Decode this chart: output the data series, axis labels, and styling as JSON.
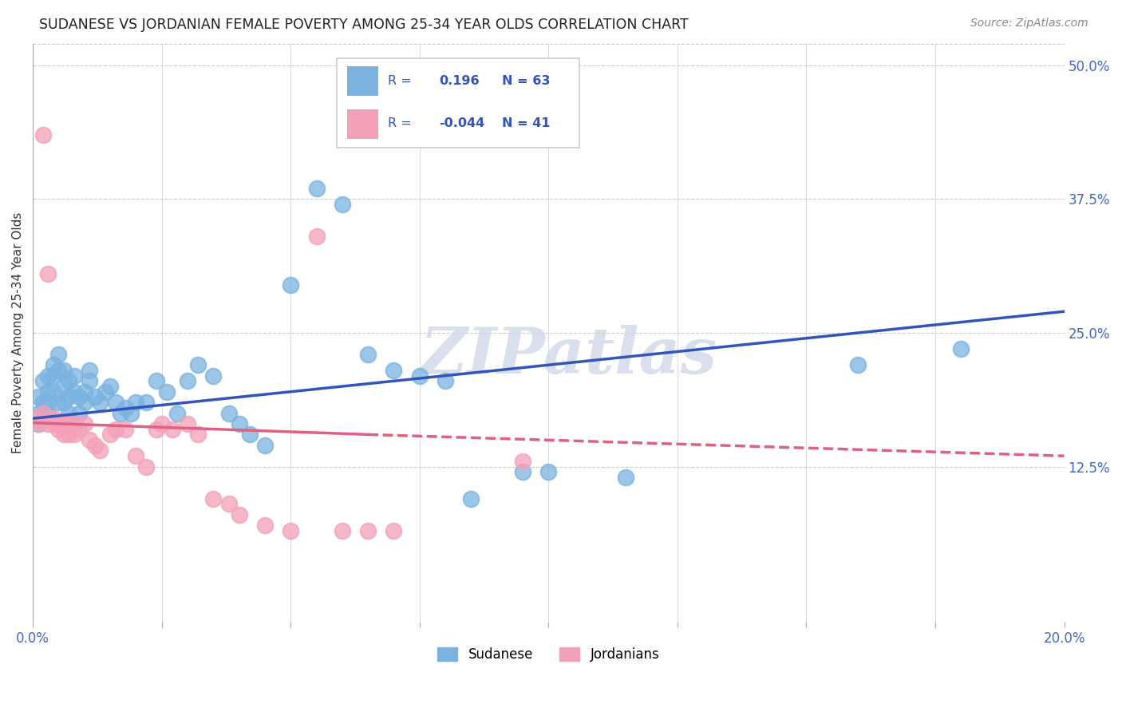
{
  "title": "SUDANESE VS JORDANIAN FEMALE POVERTY AMONG 25-34 YEAR OLDS CORRELATION CHART",
  "source": "Source: ZipAtlas.com",
  "ylabel": "Female Poverty Among 25-34 Year Olds",
  "xlim": [
    0.0,
    0.2
  ],
  "ylim": [
    -0.02,
    0.52
  ],
  "right_yticks": [
    0.125,
    0.25,
    0.375,
    0.5
  ],
  "right_yticklabels": [
    "12.5%",
    "25.0%",
    "37.5%",
    "50.0%"
  ],
  "xticks": [
    0.0,
    0.025,
    0.05,
    0.075,
    0.1,
    0.125,
    0.15,
    0.175,
    0.2
  ],
  "xticklabels": [
    "0.0%",
    "",
    "",
    "",
    "",
    "",
    "",
    "",
    "20.0%"
  ],
  "sudanese_color": "#7ab3e0",
  "jordanian_color": "#f4a0b8",
  "trend_blue": "#3355bb",
  "trend_pink": "#e06080",
  "legend_r_blue": "0.196",
  "legend_n_blue": "63",
  "legend_r_pink": "-0.044",
  "legend_n_pink": "41",
  "su_x": [
    0.001,
    0.001,
    0.001,
    0.002,
    0.002,
    0.002,
    0.003,
    0.003,
    0.003,
    0.003,
    0.004,
    0.004,
    0.004,
    0.005,
    0.005,
    0.005,
    0.006,
    0.006,
    0.006,
    0.007,
    0.007,
    0.007,
    0.008,
    0.008,
    0.009,
    0.009,
    0.01,
    0.01,
    0.011,
    0.011,
    0.012,
    0.013,
    0.014,
    0.015,
    0.016,
    0.017,
    0.018,
    0.019,
    0.02,
    0.022,
    0.024,
    0.026,
    0.028,
    0.03,
    0.032,
    0.035,
    0.038,
    0.04,
    0.042,
    0.045,
    0.05,
    0.055,
    0.06,
    0.065,
    0.07,
    0.075,
    0.08,
    0.085,
    0.095,
    0.1,
    0.115,
    0.16,
    0.18
  ],
  "su_y": [
    0.175,
    0.19,
    0.165,
    0.205,
    0.185,
    0.175,
    0.21,
    0.195,
    0.185,
    0.175,
    0.22,
    0.21,
    0.195,
    0.23,
    0.215,
    0.185,
    0.215,
    0.2,
    0.185,
    0.205,
    0.19,
    0.175,
    0.21,
    0.195,
    0.19,
    0.175,
    0.195,
    0.185,
    0.215,
    0.205,
    0.19,
    0.185,
    0.195,
    0.2,
    0.185,
    0.175,
    0.18,
    0.175,
    0.185,
    0.185,
    0.205,
    0.195,
    0.175,
    0.205,
    0.22,
    0.21,
    0.175,
    0.165,
    0.155,
    0.145,
    0.295,
    0.385,
    0.37,
    0.23,
    0.215,
    0.21,
    0.205,
    0.095,
    0.12,
    0.12,
    0.115,
    0.22,
    0.235
  ],
  "jo_x": [
    0.001,
    0.001,
    0.002,
    0.002,
    0.003,
    0.003,
    0.004,
    0.004,
    0.005,
    0.005,
    0.006,
    0.006,
    0.007,
    0.007,
    0.008,
    0.008,
    0.009,
    0.01,
    0.011,
    0.012,
    0.013,
    0.015,
    0.016,
    0.018,
    0.02,
    0.022,
    0.024,
    0.025,
    0.027,
    0.03,
    0.032,
    0.035,
    0.038,
    0.04,
    0.045,
    0.05,
    0.055,
    0.06,
    0.065,
    0.07,
    0.095
  ],
  "jo_y": [
    0.17,
    0.165,
    0.175,
    0.435,
    0.165,
    0.305,
    0.165,
    0.17,
    0.165,
    0.16,
    0.155,
    0.165,
    0.165,
    0.155,
    0.165,
    0.155,
    0.16,
    0.165,
    0.15,
    0.145,
    0.14,
    0.155,
    0.16,
    0.16,
    0.135,
    0.125,
    0.16,
    0.165,
    0.16,
    0.165,
    0.155,
    0.095,
    0.09,
    0.08,
    0.07,
    0.065,
    0.34,
    0.065,
    0.065,
    0.065,
    0.13
  ],
  "blue_line": {
    "x0": 0.0,
    "x1": 0.2,
    "y0": 0.17,
    "y1": 0.27
  },
  "pink_line_solid": {
    "x0": 0.0,
    "x1": 0.065,
    "y0": 0.166,
    "y1": 0.155
  },
  "pink_line_dashed": {
    "x0": 0.065,
    "x1": 0.2,
    "y0": 0.155,
    "y1": 0.135
  }
}
